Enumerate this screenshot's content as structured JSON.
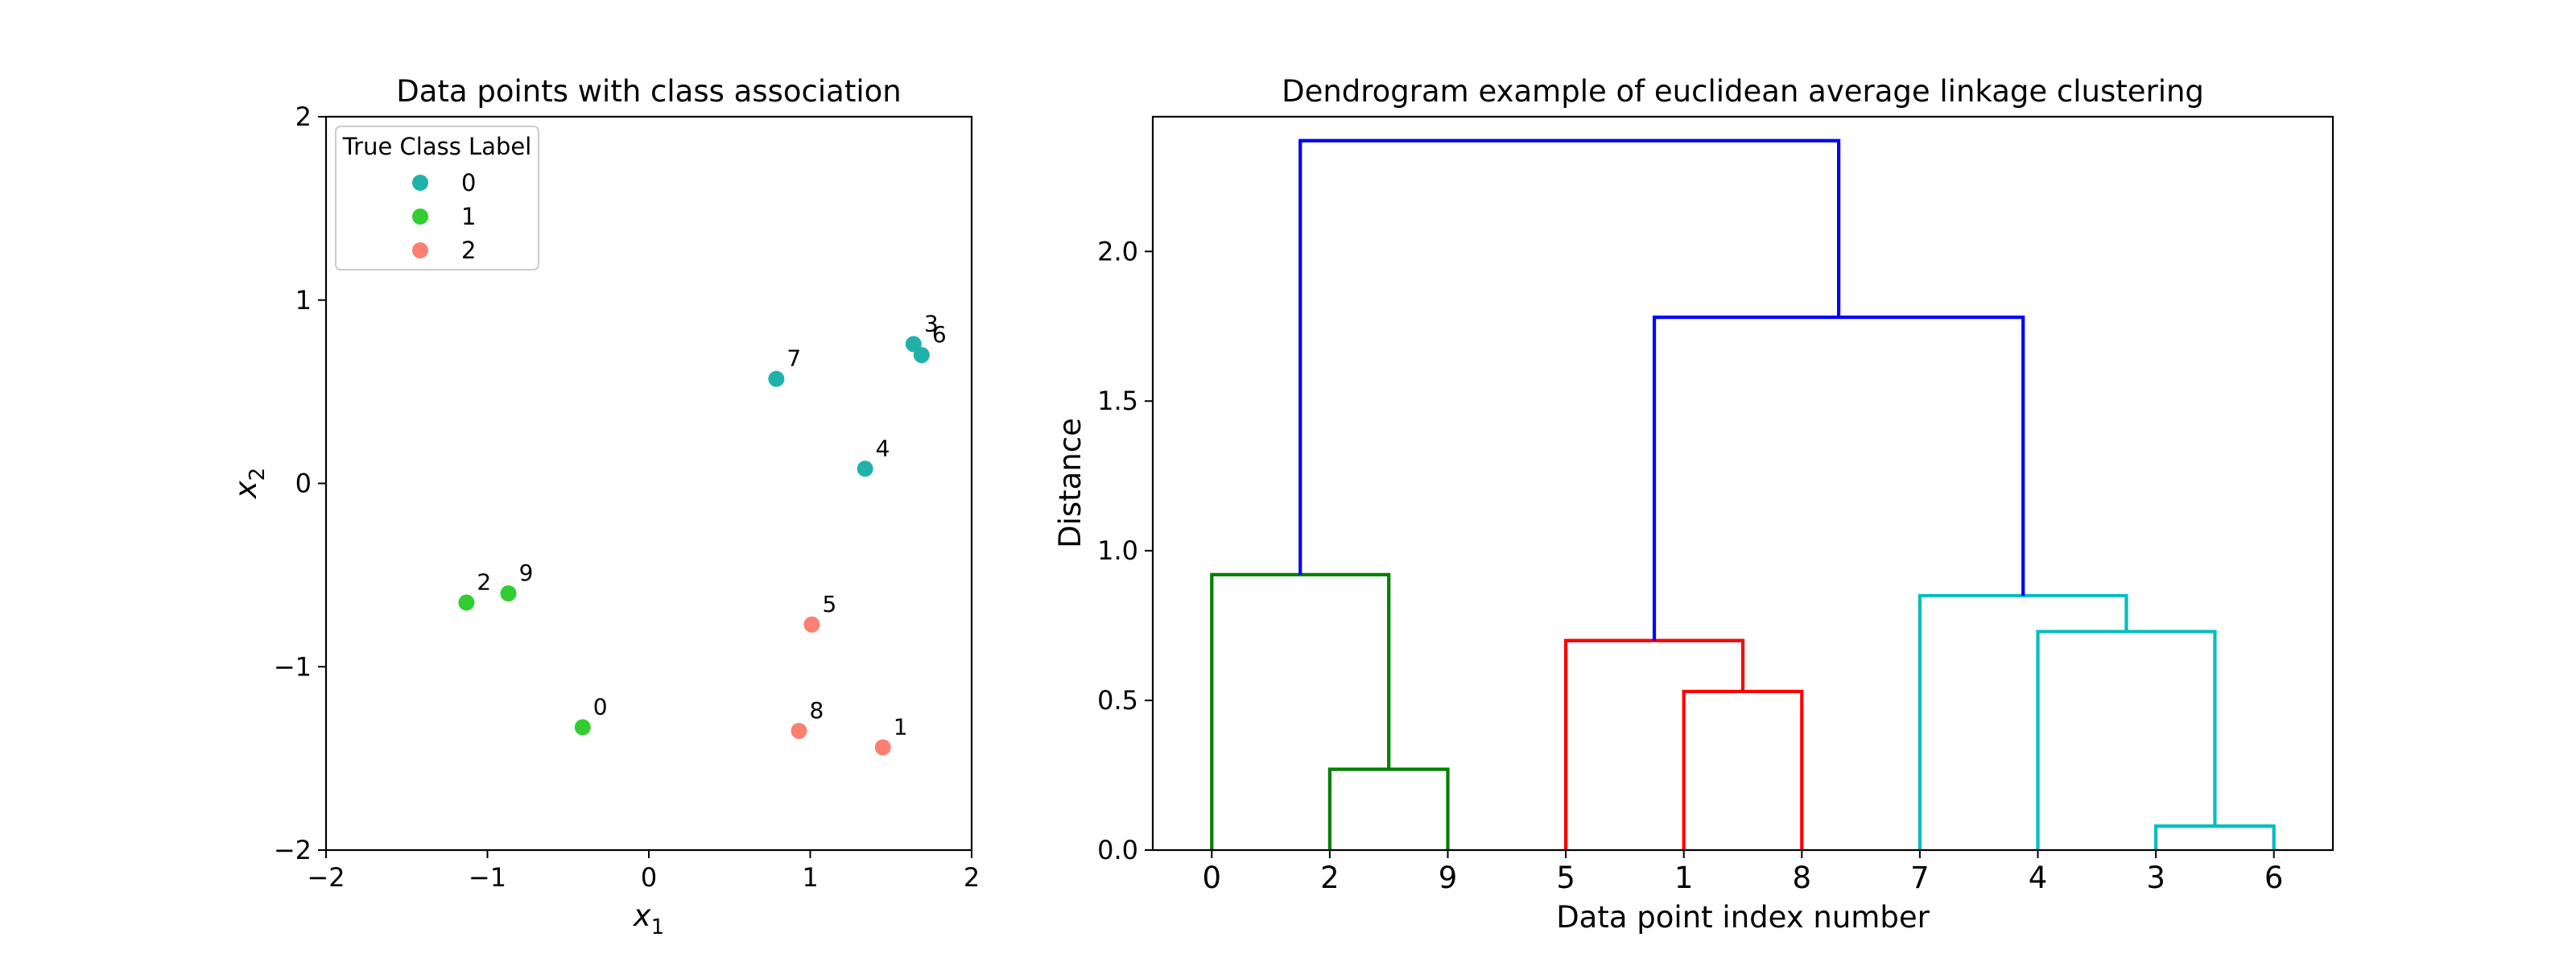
{
  "chart_data": [
    {
      "type": "scatter",
      "title": "Data points with class association",
      "xlabel": "x",
      "xlabel_sub": "1",
      "ylabel": "x",
      "ylabel_sub": "2",
      "xlim": [
        -2,
        2
      ],
      "ylim": [
        -2,
        2
      ],
      "xticks": [
        -2,
        -1,
        0,
        1,
        2
      ],
      "yticks": [
        -2,
        -1,
        0,
        1,
        2
      ],
      "tick_labels": [
        "−2",
        "−1",
        "0",
        "1",
        "2"
      ],
      "legend": {
        "title": "True Class Label",
        "placement": "top-left",
        "entries": [
          {
            "label": "0",
            "color": "#20b2aa"
          },
          {
            "label": "1",
            "color": "#32cd32"
          },
          {
            "label": "2",
            "color": "#fa8072"
          }
        ]
      },
      "points": [
        {
          "label": "0",
          "x": -0.41,
          "y": -1.33,
          "class": 1
        },
        {
          "label": "1",
          "x": 1.45,
          "y": -1.44,
          "class": 2
        },
        {
          "label": "2",
          "x": -1.13,
          "y": -0.65,
          "class": 1
        },
        {
          "label": "3",
          "x": 1.64,
          "y": 0.76,
          "class": 0
        },
        {
          "label": "4",
          "x": 1.34,
          "y": 0.08,
          "class": 0
        },
        {
          "label": "5",
          "x": 1.01,
          "y": -0.77,
          "class": 2
        },
        {
          "label": "6",
          "x": 1.69,
          "y": 0.7,
          "class": 0
        },
        {
          "label": "7",
          "x": 0.79,
          "y": 0.57,
          "class": 0
        },
        {
          "label": "8",
          "x": 0.93,
          "y": -1.35,
          "class": 2
        },
        {
          "label": "9",
          "x": -0.87,
          "y": -0.6,
          "class": 1
        }
      ]
    },
    {
      "type": "dendrogram",
      "title": "Dendrogram example of euclidean average linkage clustering",
      "xlabel": "Data point index number",
      "ylabel": "Distance",
      "ylim": [
        0,
        2.45
      ],
      "yticks": [
        0.0,
        0.5,
        1.0,
        1.5,
        2.0
      ],
      "ytick_labels": [
        "0.0",
        "0.5",
        "1.0",
        "1.5",
        "2.0"
      ],
      "leaf_order": [
        "0",
        "2",
        "9",
        "5",
        "1",
        "8",
        "7",
        "4",
        "3",
        "6"
      ],
      "merges": [
        {
          "left": "3",
          "right": "6",
          "height": 0.08,
          "color": "#00bfbf"
        },
        {
          "left": "2",
          "right": "9",
          "height": 0.27,
          "color": "#008000"
        },
        {
          "left": "1",
          "right": "8",
          "height": 0.53,
          "color": "#ff0000"
        },
        {
          "left": "5",
          "right": "{1,8}",
          "height": 0.7,
          "color": "#ff0000"
        },
        {
          "left": "4",
          "right": "{3,6}",
          "height": 0.73,
          "color": "#00bfbf"
        },
        {
          "left": "7",
          "right": "{4,3,6}",
          "height": 0.85,
          "color": "#00bfbf"
        },
        {
          "left": "0",
          "right": "{2,9}",
          "height": 0.92,
          "color": "#008000"
        },
        {
          "left": "{5,1,8}",
          "right": "{7,4,3,6}",
          "height": 1.78,
          "color": "#0000ff"
        },
        {
          "left": "{0,2,9}",
          "right": "{5,1,8,7,4,3,6}",
          "height": 2.37,
          "color": "#0000ff"
        }
      ]
    }
  ]
}
